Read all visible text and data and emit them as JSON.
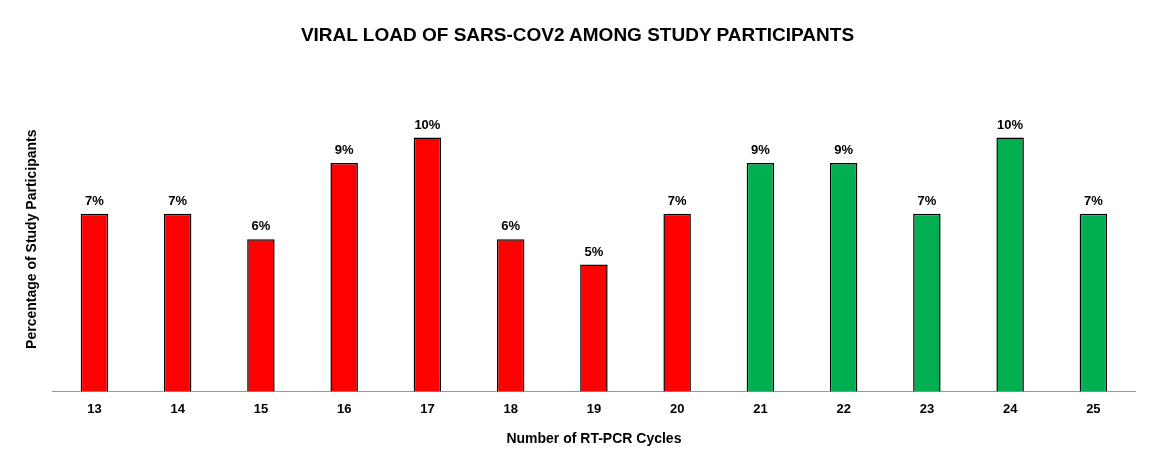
{
  "chart_data": {
    "type": "bar",
    "title": "VIRAL LOAD OF SARS-COV2 AMONG STUDY PARTICIPANTS",
    "xlabel": "Number of RT-PCR Cycles",
    "ylabel": "Percentage of Study Participants",
    "categories": [
      "13",
      "14",
      "15",
      "16",
      "17",
      "18",
      "19",
      "20",
      "21",
      "22",
      "23",
      "24",
      "25"
    ],
    "values": [
      7,
      7,
      6,
      9,
      10,
      6,
      5,
      7,
      9,
      9,
      7,
      10,
      7
    ],
    "value_labels": [
      "7%",
      "7%",
      "6%",
      "9%",
      "10%",
      "6%",
      "5%",
      "7%",
      "9%",
      "9%",
      "7%",
      "10%",
      "7%"
    ],
    "colors": [
      "#ff0000",
      "#ff0000",
      "#ff0000",
      "#ff0000",
      "#ff0000",
      "#ff0000",
      "#ff0000",
      "#ff0000",
      "#00b050",
      "#00b050",
      "#00b050",
      "#00b050",
      "#00b050"
    ],
    "grid": false,
    "legend": false
  }
}
